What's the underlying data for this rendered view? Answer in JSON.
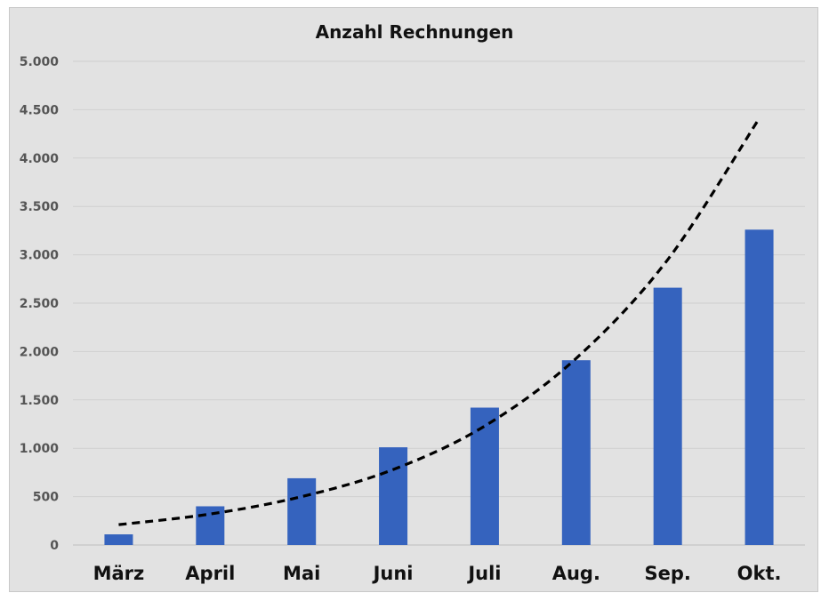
{
  "chart_data": {
    "type": "bar",
    "title": "Anzahl Rechnungen",
    "xlabel": "",
    "ylabel": "",
    "categories": [
      "März",
      "April",
      "Mai",
      "Juni",
      "Juli",
      "Aug.",
      "Sep.",
      "Okt."
    ],
    "series": [
      {
        "values": [
          110,
          400,
          690,
          1010,
          1420,
          1910,
          2660,
          3260
        ],
        "color": "#3563be"
      }
    ],
    "trendline": {
      "style": "dashed",
      "color": "#000000",
      "values": [
        210,
        320,
        500,
        780,
        1230,
        1930,
        2950,
        4410
      ]
    },
    "ylim": [
      0,
      5000
    ],
    "yticks": [
      0,
      500,
      1000,
      1500,
      2000,
      2500,
      3000,
      3500,
      4000,
      4500,
      5000
    ],
    "ytick_labels": [
      "0",
      "500",
      "1.000",
      "1.500",
      "2.000",
      "2.500",
      "3.000",
      "3.500",
      "4.000",
      "4.500",
      "5.000"
    ],
    "grid": true,
    "legend": "none",
    "background": "#e2e2e2"
  }
}
